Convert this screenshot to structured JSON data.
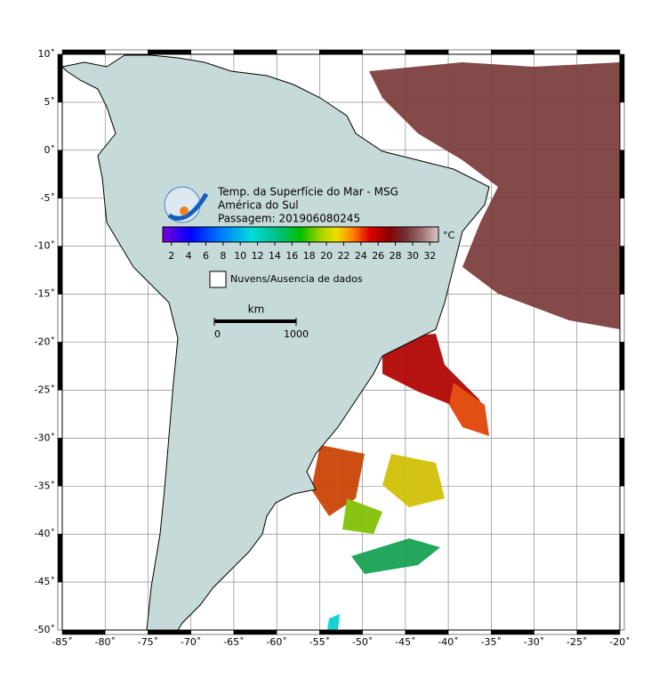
{
  "map": {
    "title": "Temp. da Superfície do Mar - MSG",
    "region": "América do Sul",
    "pass": "Passagem: 201906080245",
    "xlim": [
      -85,
      -20
    ],
    "ylim": [
      -50,
      10
    ],
    "xticks": [
      {
        "value": -85,
        "label": "-85˚"
      },
      {
        "value": -80,
        "label": "-80˚"
      },
      {
        "value": -75,
        "label": "-75˚"
      },
      {
        "value": -70,
        "label": "-70˚"
      },
      {
        "value": -65,
        "label": "-65˚"
      },
      {
        "value": -60,
        "label": "-60˚"
      },
      {
        "value": -55,
        "label": "-55˚"
      },
      {
        "value": -50,
        "label": "-50˚"
      },
      {
        "value": -45,
        "label": "-45˚"
      },
      {
        "value": -40,
        "label": "-40˚"
      },
      {
        "value": -35,
        "label": "-35˚"
      },
      {
        "value": -30,
        "label": "-30˚"
      },
      {
        "value": -25,
        "label": "-25˚"
      },
      {
        "value": -20,
        "label": "-20˚"
      }
    ],
    "yticks": [
      {
        "value": 10,
        "label": "10˚"
      },
      {
        "value": 5,
        "label": "5˚"
      },
      {
        "value": 0,
        "label": "0˚"
      },
      {
        "value": -5,
        "label": "-5˚"
      },
      {
        "value": -10,
        "label": "-10˚"
      },
      {
        "value": -15,
        "label": "-15˚"
      },
      {
        "value": -20,
        "label": "-20˚"
      },
      {
        "value": -25,
        "label": "-25˚"
      },
      {
        "value": -30,
        "label": "-30˚"
      },
      {
        "value": -35,
        "label": "-35˚"
      },
      {
        "value": -40,
        "label": "-40˚"
      },
      {
        "value": -45,
        "label": "-45˚"
      },
      {
        "value": -50,
        "label": "-50˚"
      }
    ],
    "colorbar": {
      "unit": "°C",
      "clim": [
        1,
        33
      ],
      "ticks": [
        2,
        4,
        6,
        8,
        10,
        12,
        14,
        16,
        18,
        20,
        22,
        24,
        26,
        28,
        30,
        32
      ]
    },
    "legend": "Nuvens/Ausencia de dados",
    "scale": {
      "unit": "km",
      "ticks": [
        0,
        1000
      ]
    }
  }
}
